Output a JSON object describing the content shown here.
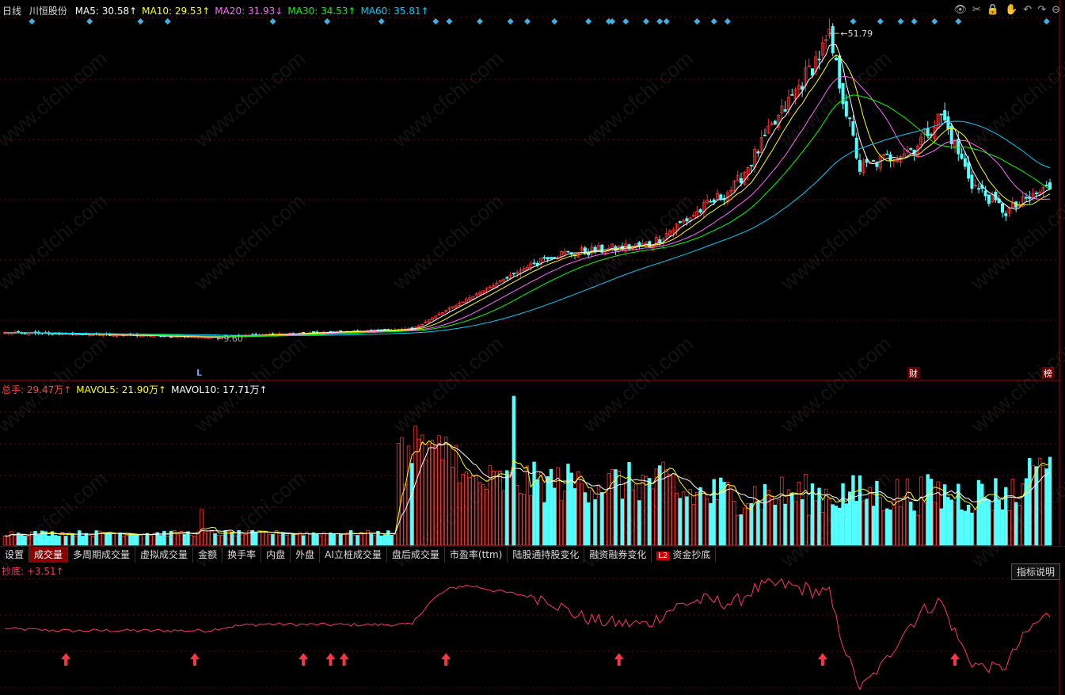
{
  "header": {
    "period": "日线",
    "stock_name": "川恒股份",
    "ma": [
      {
        "label": "MA5: 30.58↑",
        "color": "#ffffff"
      },
      {
        "label": "MA10: 29.53↑",
        "color": "#ffff00"
      },
      {
        "label": "MA20: 31.93↓",
        "color": "#ff66ff"
      },
      {
        "label": "MA30: 34.53↑",
        "color": "#00ff00"
      },
      {
        "label": "MA60: 35.81↑",
        "color": "#00ccff"
      }
    ]
  },
  "toolbar_icons": [
    "eye-icon",
    "scissors-icon",
    "lock-icon",
    "hand-icon",
    "undo-icon",
    "redo-icon",
    "minus-icon"
  ],
  "price_annotations": {
    "high": "51.79",
    "low": "9.60",
    "marker_l": "L",
    "badge_cai": "财",
    "badge_bang": "榜"
  },
  "volume_legend": [
    {
      "label": "总手: 29.47万↑",
      "color": "#ff4444"
    },
    {
      "label": "MAVOL5: 21.90万↑",
      "color": "#ffff00"
    },
    {
      "label": "MAVOL10: 17.71万↑",
      "color": "#ffffff"
    }
  ],
  "tabs": [
    "设置",
    "成交量",
    "多周期成交量",
    "虚拟成交量",
    "金额",
    "换手率",
    "内盘",
    "外盘",
    "AI立桩成交量",
    "盘后成交量",
    "市盈率(ttm)",
    "陆股通持股变化",
    "融资融券变化",
    "资金抄底"
  ],
  "active_tab": "成交量",
  "l2_badge": "L2",
  "indicator": {
    "label": "抄底: +3.51↑",
    "button": "指标说明"
  },
  "watermark": "www.cfchi.com",
  "colors": {
    "up": "#ff3333",
    "down": "#54ffff",
    "grid": "#7a0000"
  },
  "chart_data": {
    "type": "candlestick",
    "price_key_points": [
      {
        "day": 0,
        "close": 10.3
      },
      {
        "day": 60,
        "close": 9.7
      },
      {
        "day": 120,
        "close": 10.8
      },
      {
        "day": 160,
        "close": 21.0
      },
      {
        "day": 190,
        "close": 22.5
      },
      {
        "day": 215,
        "close": 30.5
      },
      {
        "day": 243,
        "close": 51.0
      },
      {
        "day": 252,
        "close": 33.0
      },
      {
        "day": 268,
        "close": 36.0
      },
      {
        "day": 276,
        "close": 40.5
      },
      {
        "day": 285,
        "close": 31.0
      },
      {
        "day": 295,
        "close": 27.0
      },
      {
        "day": 308,
        "close": 30.6
      }
    ],
    "high_label": 51.79,
    "low_label": 9.6,
    "volume_unit": "万",
    "volume_last": 29.47,
    "mavol5_last": 21.9,
    "mavol10_last": 17.71,
    "indicator_last": 3.51
  }
}
